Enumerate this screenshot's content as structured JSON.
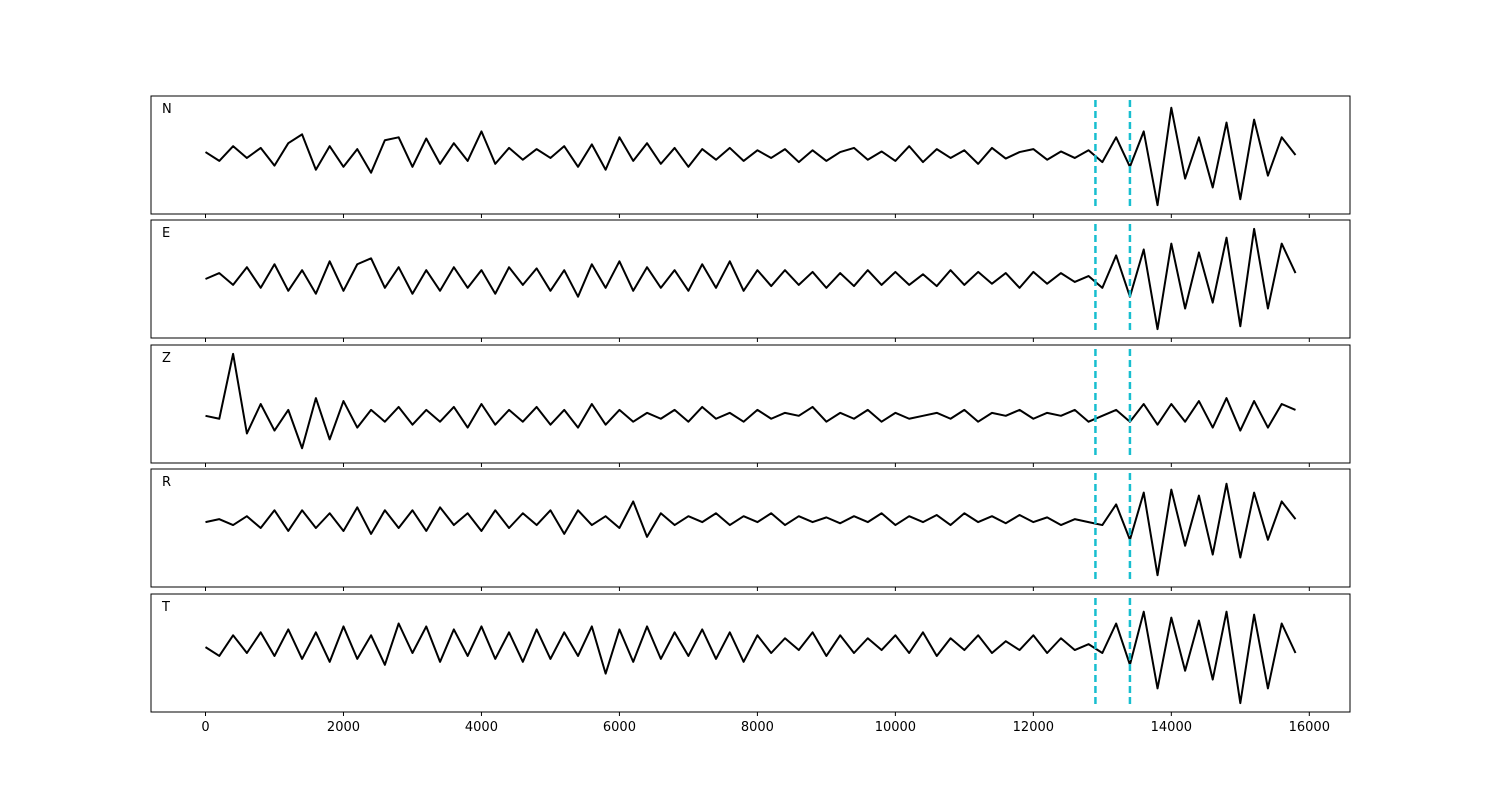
{
  "chart_data": [
    {
      "type": "line",
      "title": "N",
      "x": [
        0,
        200,
        400,
        600,
        800,
        1000,
        1200,
        1400,
        1600,
        1800,
        2000,
        2200,
        2400,
        2600,
        2800,
        3000,
        3200,
        3400,
        3600,
        3800,
        4000,
        4200,
        4400,
        4600,
        4800,
        5000,
        5200,
        5400,
        5600,
        5800,
        6000,
        6200,
        6400,
        6600,
        6800,
        7000,
        7200,
        7400,
        7600,
        7800,
        8000,
        8200,
        8400,
        8600,
        8800,
        9000,
        9200,
        9400,
        9600,
        9800,
        10000,
        10200,
        10400,
        10600,
        10800,
        11000,
        11200,
        11400,
        11600,
        11800,
        12000,
        12200,
        12400,
        12600,
        12800,
        13000,
        13200,
        13400,
        13600,
        13800,
        14000,
        14200,
        14400,
        14600,
        14800,
        15000,
        15200,
        15400,
        15600,
        15800
      ],
      "series": [
        {
          "color": "#000000",
          "values": [
            0.05,
            -0.1,
            0.15,
            -0.05,
            0.12,
            -0.18,
            0.2,
            0.35,
            -0.25,
            0.15,
            -0.2,
            0.1,
            -0.3,
            0.25,
            0.3,
            -0.2,
            0.28,
            -0.15,
            0.2,
            -0.1,
            0.4,
            -0.15,
            0.12,
            -0.08,
            0.1,
            -0.05,
            0.15,
            -0.2,
            0.18,
            -0.25,
            0.3,
            -0.1,
            0.2,
            -0.15,
            0.12,
            -0.2,
            0.1,
            -0.08,
            0.12,
            -0.1,
            0.08,
            -0.05,
            0.1,
            -0.12,
            0.08,
            -0.1,
            0.05,
            0.12,
            -0.08,
            0.06,
            -0.1,
            0.15,
            -0.12,
            0.1,
            -0.05,
            0.08,
            -0.15,
            0.12,
            -0.06,
            0.05,
            0.1,
            -0.08,
            0.06,
            -0.05,
            0.08,
            -0.12,
            0.3,
            -0.2,
            0.4,
            -0.85,
            0.8,
            -0.4,
            0.3,
            -0.55,
            0.55,
            -0.75,
            0.6,
            -0.35,
            0.3,
            0.0
          ]
        }
      ],
      "xlim": [
        -790,
        16590
      ],
      "ylim": [
        -1,
        1
      ],
      "xticks": [
        0,
        2000,
        4000,
        6000,
        8000,
        10000,
        12000,
        14000,
        16000
      ],
      "vlines": {
        "x": [
          12900,
          13400
        ],
        "color": "#17becf"
      }
    },
    {
      "type": "line",
      "title": "E",
      "x": [
        0,
        200,
        400,
        600,
        800,
        1000,
        1200,
        1400,
        1600,
        1800,
        2000,
        2200,
        2400,
        2600,
        2800,
        3000,
        3200,
        3400,
        3600,
        3800,
        4000,
        4200,
        4400,
        4600,
        4800,
        5000,
        5200,
        5400,
        5600,
        5800,
        6000,
        6200,
        6400,
        6600,
        6800,
        7000,
        7200,
        7400,
        7600,
        7800,
        8000,
        8200,
        8400,
        8600,
        8800,
        9000,
        9200,
        9400,
        9600,
        9800,
        10000,
        10200,
        10400,
        10600,
        10800,
        11000,
        11200,
        11400,
        11600,
        11800,
        12000,
        12200,
        12400,
        12600,
        12800,
        13000,
        13200,
        13400,
        13600,
        13800,
        14000,
        14200,
        14400,
        14600,
        14800,
        15000,
        15200,
        15400,
        15600,
        15800
      ],
      "series": [
        {
          "color": "#000000",
          "values": [
            0.0,
            0.1,
            -0.1,
            0.2,
            -0.15,
            0.25,
            -0.2,
            0.15,
            -0.25,
            0.3,
            -0.2,
            0.25,
            0.35,
            -0.15,
            0.2,
            -0.25,
            0.15,
            -0.2,
            0.2,
            -0.15,
            0.15,
            -0.25,
            0.2,
            -0.1,
            0.18,
            -0.2,
            0.15,
            -0.3,
            0.25,
            -0.15,
            0.3,
            -0.2,
            0.2,
            -0.15,
            0.15,
            -0.2,
            0.25,
            -0.15,
            0.3,
            -0.2,
            0.15,
            -0.12,
            0.15,
            -0.1,
            0.12,
            -0.15,
            0.1,
            -0.12,
            0.15,
            -0.1,
            0.12,
            -0.1,
            0.08,
            -0.12,
            0.15,
            -0.1,
            0.12,
            -0.08,
            0.1,
            -0.15,
            0.12,
            -0.08,
            0.1,
            -0.05,
            0.05,
            -0.15,
            0.4,
            -0.3,
            0.5,
            -0.85,
            0.6,
            -0.5,
            0.45,
            -0.4,
            0.7,
            -0.8,
            0.85,
            -0.5,
            0.6,
            0.1
          ]
        }
      ],
      "xlim": [
        -790,
        16590
      ],
      "ylim": [
        -1,
        1
      ],
      "xticks": [
        0,
        2000,
        4000,
        6000,
        8000,
        10000,
        12000,
        14000,
        16000
      ],
      "vlines": {
        "x": [
          12900,
          13400
        ],
        "color": "#17becf"
      }
    },
    {
      "type": "line",
      "title": "Z",
      "x": [
        0,
        200,
        400,
        600,
        800,
        1000,
        1200,
        1400,
        1600,
        1800,
        2000,
        2200,
        2400,
        2600,
        2800,
        3000,
        3200,
        3400,
        3600,
        3800,
        4000,
        4200,
        4400,
        4600,
        4800,
        5000,
        5200,
        5400,
        5600,
        5800,
        6000,
        6200,
        6400,
        6600,
        6800,
        7000,
        7200,
        7400,
        7600,
        7800,
        8000,
        8200,
        8400,
        8600,
        8800,
        9000,
        9200,
        9400,
        9600,
        9800,
        10000,
        10200,
        10400,
        10600,
        10800,
        11000,
        11200,
        11400,
        11600,
        11800,
        12000,
        12200,
        12400,
        12600,
        12800,
        13000,
        13200,
        13400,
        13600,
        13800,
        14000,
        14200,
        14400,
        14600,
        14800,
        15000,
        15200,
        15400,
        15600,
        15800
      ],
      "series": [
        {
          "color": "#000000",
          "values": [
            -0.2,
            -0.25,
            0.85,
            -0.5,
            0.0,
            -0.45,
            -0.1,
            -0.75,
            0.1,
            -0.6,
            0.05,
            -0.4,
            -0.1,
            -0.3,
            -0.05,
            -0.35,
            -0.1,
            -0.3,
            -0.05,
            -0.4,
            0.0,
            -0.35,
            -0.1,
            -0.3,
            -0.05,
            -0.35,
            -0.1,
            -0.4,
            0.0,
            -0.35,
            -0.1,
            -0.3,
            -0.15,
            -0.25,
            -0.1,
            -0.3,
            -0.05,
            -0.25,
            -0.15,
            -0.3,
            -0.1,
            -0.25,
            -0.15,
            -0.2,
            -0.05,
            -0.3,
            -0.15,
            -0.25,
            -0.1,
            -0.3,
            -0.15,
            -0.25,
            -0.2,
            -0.15,
            -0.25,
            -0.1,
            -0.3,
            -0.15,
            -0.2,
            -0.1,
            -0.25,
            -0.15,
            -0.2,
            -0.1,
            -0.3,
            -0.2,
            -0.1,
            -0.3,
            0.0,
            -0.35,
            0.0,
            -0.3,
            0.05,
            -0.4,
            0.1,
            -0.45,
            0.05,
            -0.4,
            0.0,
            -0.1
          ]
        }
      ],
      "xlim": [
        -790,
        16590
      ],
      "ylim": [
        -1,
        1
      ],
      "xticks": [
        0,
        2000,
        4000,
        6000,
        8000,
        10000,
        12000,
        14000,
        16000
      ],
      "vlines": {
        "x": [
          12900,
          13400
        ],
        "color": "#17becf"
      }
    },
    {
      "type": "line",
      "title": "R",
      "x": [
        0,
        200,
        400,
        600,
        800,
        1000,
        1200,
        1400,
        1600,
        1800,
        2000,
        2200,
        2400,
        2600,
        2800,
        3000,
        3200,
        3400,
        3600,
        3800,
        4000,
        4200,
        4400,
        4600,
        4800,
        5000,
        5200,
        5400,
        5600,
        5800,
        6000,
        6200,
        6400,
        6600,
        6800,
        7000,
        7200,
        7400,
        7600,
        7800,
        8000,
        8200,
        8400,
        8600,
        8800,
        9000,
        9200,
        9400,
        9600,
        9800,
        10000,
        10200,
        10400,
        10600,
        10800,
        11000,
        11200,
        11400,
        11600,
        11800,
        12000,
        12200,
        12400,
        12600,
        12800,
        13000,
        13200,
        13400,
        13600,
        13800,
        14000,
        14200,
        14400,
        14600,
        14800,
        15000,
        15200,
        15400,
        15600,
        15800
      ],
      "series": [
        {
          "color": "#000000",
          "values": [
            0.1,
            0.15,
            0.05,
            0.2,
            0.0,
            0.3,
            -0.05,
            0.3,
            0.0,
            0.25,
            -0.05,
            0.35,
            -0.1,
            0.3,
            0.0,
            0.3,
            -0.05,
            0.35,
            0.05,
            0.25,
            -0.05,
            0.3,
            0.0,
            0.25,
            0.05,
            0.3,
            -0.1,
            0.3,
            0.05,
            0.2,
            0.0,
            0.45,
            -0.15,
            0.25,
            0.05,
            0.2,
            0.1,
            0.25,
            0.05,
            0.2,
            0.1,
            0.25,
            0.05,
            0.2,
            0.1,
            0.18,
            0.08,
            0.2,
            0.1,
            0.25,
            0.05,
            0.2,
            0.1,
            0.22,
            0.05,
            0.25,
            0.1,
            0.2,
            0.08,
            0.22,
            0.1,
            0.18,
            0.05,
            0.15,
            0.1,
            0.05,
            0.4,
            -0.2,
            0.6,
            -0.8,
            0.65,
            -0.3,
            0.55,
            -0.45,
            0.75,
            -0.5,
            0.6,
            -0.2,
            0.45,
            0.15
          ]
        }
      ],
      "xlim": [
        -790,
        16590
      ],
      "ylim": [
        -1,
        1
      ],
      "xticks": [
        0,
        2000,
        4000,
        6000,
        8000,
        10000,
        12000,
        14000,
        16000
      ],
      "vlines": {
        "x": [
          12900,
          13400
        ],
        "color": "#17becf"
      }
    },
    {
      "type": "line",
      "title": "T",
      "x": [
        0,
        200,
        400,
        600,
        800,
        1000,
        1200,
        1400,
        1600,
        1800,
        2000,
        2200,
        2400,
        2600,
        2800,
        3000,
        3200,
        3400,
        3600,
        3800,
        4000,
        4200,
        4400,
        4600,
        4800,
        5000,
        5200,
        5400,
        5600,
        5800,
        6000,
        6200,
        6400,
        6600,
        6800,
        7000,
        7200,
        7400,
        7600,
        7800,
        8000,
        8200,
        8400,
        8600,
        8800,
        9000,
        9200,
        9400,
        9600,
        9800,
        10000,
        10200,
        10400,
        10600,
        10800,
        11000,
        11200,
        11400,
        11600,
        11800,
        12000,
        12200,
        12400,
        12600,
        12800,
        13000,
        13200,
        13400,
        13600,
        13800,
        14000,
        14200,
        14400,
        14600,
        14800,
        15000,
        15200,
        15400,
        15600,
        15800
      ],
      "series": [
        {
          "color": "#000000",
          "values": [
            0.1,
            -0.05,
            0.3,
            0.0,
            0.35,
            -0.05,
            0.4,
            -0.1,
            0.35,
            -0.15,
            0.45,
            -0.1,
            0.3,
            -0.2,
            0.5,
            0.0,
            0.45,
            -0.15,
            0.4,
            -0.05,
            0.45,
            -0.1,
            0.35,
            -0.15,
            0.4,
            -0.1,
            0.35,
            -0.05,
            0.45,
            -0.35,
            0.4,
            -0.15,
            0.45,
            -0.1,
            0.35,
            -0.05,
            0.4,
            -0.1,
            0.35,
            -0.15,
            0.3,
            0.0,
            0.25,
            0.05,
            0.35,
            -0.05,
            0.3,
            0.0,
            0.25,
            0.05,
            0.3,
            0.0,
            0.35,
            -0.05,
            0.25,
            0.05,
            0.3,
            0.0,
            0.2,
            0.05,
            0.3,
            0.0,
            0.25,
            0.05,
            0.15,
            0.0,
            0.5,
            -0.2,
            0.7,
            -0.6,
            0.6,
            -0.3,
            0.55,
            -0.45,
            0.7,
            -0.85,
            0.65,
            -0.6,
            0.5,
            0.0
          ]
        }
      ],
      "xlim": [
        -790,
        16590
      ],
      "ylim": [
        -1,
        1
      ],
      "xticks": [
        0,
        2000,
        4000,
        6000,
        8000,
        10000,
        12000,
        14000,
        16000
      ],
      "vlines": {
        "x": [
          12900,
          13400
        ],
        "color": "#17becf"
      }
    }
  ]
}
